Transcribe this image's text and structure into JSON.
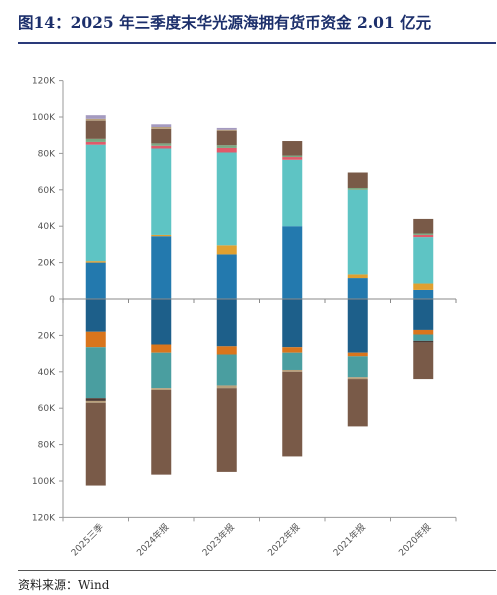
{
  "figure": {
    "title": "图14：2025 年三季度末华光源海拥有货币资金 2.01 亿元",
    "source": "资料来源：Wind"
  },
  "chart_data": {
    "type": "bar",
    "stacked": true,
    "categories": [
      "2025三季",
      "2024年报",
      "2023年报",
      "2022年报",
      "2021年报",
      "2020年报"
    ],
    "y_tick_labels": [
      "120K",
      "100K",
      "80K",
      "60K",
      "40K",
      "20K",
      "0",
      "20K",
      "40K",
      "60K",
      "80K",
      "100K",
      "120K"
    ],
    "ylim": [
      -120000,
      120000
    ],
    "grid": false,
    "legend": "none",
    "colors": {
      "dark_blue": "#1d5f8a",
      "orange": "#d9751c",
      "teal": "#4a9ea0",
      "brown": "#795a48",
      "dark": "#4d3a33",
      "blue": "#2379ae",
      "yellow": "#e0a030",
      "cyan": "#5ec4c4",
      "red": "#e05a6a",
      "lavender": "#a49ac0",
      "green": "#7aa882",
      "sand": "#b8a07c"
    },
    "positive_segments": [
      [
        {
          "value": 20000,
          "color": "blue"
        },
        {
          "value": 800,
          "color": "yellow"
        },
        {
          "value": 64000,
          "color": "cyan"
        },
        {
          "value": 1500,
          "color": "red"
        },
        {
          "value": 1700,
          "color": "green"
        },
        {
          "value": 10000,
          "color": "brown"
        },
        {
          "value": 1000,
          "color": "sand"
        },
        {
          "value": 2000,
          "color": "lavender"
        }
      ],
      [
        {
          "value": 34500,
          "color": "blue"
        },
        {
          "value": 700,
          "color": "yellow"
        },
        {
          "value": 47500,
          "color": "cyan"
        },
        {
          "value": 1500,
          "color": "red"
        },
        {
          "value": 1300,
          "color": "green"
        },
        {
          "value": 8000,
          "color": "brown"
        },
        {
          "value": 1000,
          "color": "sand"
        },
        {
          "value": 1500,
          "color": "lavender"
        }
      ],
      [
        {
          "value": 24500,
          "color": "blue"
        },
        {
          "value": 5000,
          "color": "yellow"
        },
        {
          "value": 51000,
          "color": "cyan"
        },
        {
          "value": 2500,
          "color": "red"
        },
        {
          "value": 1500,
          "color": "green"
        },
        {
          "value": 8000,
          "color": "brown"
        },
        {
          "value": 500,
          "color": "sand"
        },
        {
          "value": 1000,
          "color": "lavender"
        }
      ],
      [
        {
          "value": 40000,
          "color": "blue"
        },
        {
          "value": 36500,
          "color": "cyan"
        },
        {
          "value": 1500,
          "color": "red"
        },
        {
          "value": 800,
          "color": "green"
        },
        {
          "value": 8000,
          "color": "brown"
        }
      ],
      [
        {
          "value": 11500,
          "color": "blue"
        },
        {
          "value": 2000,
          "color": "yellow"
        },
        {
          "value": 46500,
          "color": "cyan"
        },
        {
          "value": 1000,
          "color": "green"
        },
        {
          "value": 8500,
          "color": "brown"
        }
      ],
      [
        {
          "value": 5000,
          "color": "blue"
        },
        {
          "value": 3500,
          "color": "yellow"
        },
        {
          "value": 25500,
          "color": "cyan"
        },
        {
          "value": 1200,
          "color": "red"
        },
        {
          "value": 800,
          "color": "green"
        },
        {
          "value": 8000,
          "color": "brown"
        }
      ]
    ],
    "negative_segments": [
      [
        {
          "value": 18000,
          "color": "dark_blue"
        },
        {
          "value": 8500,
          "color": "orange"
        },
        {
          "value": 28000,
          "color": "teal"
        },
        {
          "value": 1500,
          "color": "dark"
        },
        {
          "value": 1000,
          "color": "sand"
        },
        {
          "value": 45500,
          "color": "brown"
        }
      ],
      [
        {
          "value": 25000,
          "color": "dark_blue"
        },
        {
          "value": 4500,
          "color": "orange"
        },
        {
          "value": 19500,
          "color": "teal"
        },
        {
          "value": 1000,
          "color": "sand"
        },
        {
          "value": 46500,
          "color": "brown"
        }
      ],
      [
        {
          "value": 26000,
          "color": "dark_blue"
        },
        {
          "value": 4500,
          "color": "orange"
        },
        {
          "value": 17000,
          "color": "teal"
        },
        {
          "value": 1500,
          "color": "sand"
        },
        {
          "value": 46000,
          "color": "brown"
        }
      ],
      [
        {
          "value": 26500,
          "color": "dark_blue"
        },
        {
          "value": 3000,
          "color": "orange"
        },
        {
          "value": 9500,
          "color": "teal"
        },
        {
          "value": 1000,
          "color": "sand"
        },
        {
          "value": 46500,
          "color": "brown"
        }
      ],
      [
        {
          "value": 29500,
          "color": "dark_blue"
        },
        {
          "value": 2000,
          "color": "orange"
        },
        {
          "value": 11500,
          "color": "teal"
        },
        {
          "value": 1000,
          "color": "sand"
        },
        {
          "value": 26000,
          "color": "brown"
        }
      ],
      [
        {
          "value": 17000,
          "color": "dark_blue"
        },
        {
          "value": 2500,
          "color": "orange"
        },
        {
          "value": 3500,
          "color": "teal"
        },
        {
          "value": 1000,
          "color": "dark"
        },
        {
          "value": 20000,
          "color": "brown"
        }
      ]
    ]
  }
}
